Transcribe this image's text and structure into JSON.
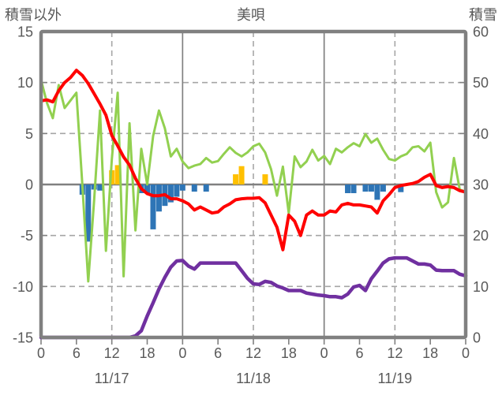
{
  "chart_data": {
    "type": "line",
    "title": "美唄",
    "left_axis": {
      "title": "積雪以外",
      "min": -15,
      "max": 15,
      "ticks": [
        15,
        10,
        5,
        0,
        -5,
        -10,
        -15
      ],
      "tick_labels": [
        "15",
        "10",
        "5",
        "0",
        "-5",
        "-10",
        "-15"
      ]
    },
    "right_axis": {
      "title": "積雪",
      "min": 0,
      "max": 60,
      "ticks": [
        60,
        50,
        40,
        30,
        20,
        10,
        0
      ],
      "tick_labels": [
        "60",
        "50",
        "40",
        "30",
        "20",
        "10",
        "0"
      ]
    },
    "x_axis": {
      "span_hours": 72,
      "tick_every_hours": 6,
      "hour_labels": [
        "0",
        "6",
        "12",
        "18",
        "0",
        "6",
        "12",
        "18",
        "0",
        "6",
        "12",
        "18",
        "0"
      ],
      "date_labels": [
        {
          "label": "11/17",
          "center_hour": 12
        },
        {
          "label": "11/18",
          "center_hour": 36
        },
        {
          "label": "11/19",
          "center_hour": 60
        }
      ],
      "solid_gridlines_at_hours": [
        24,
        48
      ],
      "dashed_gridlines_at_hours": [
        12,
        36,
        60
      ]
    },
    "grid_on": true,
    "legend": "none",
    "colors": {
      "frame": "#808080",
      "grid": "#A6A6A6",
      "text": "#595959",
      "red_line": "#FF0000",
      "green_line": "#92D050",
      "purple_line": "#7030A0",
      "blue_bars": "#2E75B6",
      "yellow_bars": "#FFC000"
    },
    "series": [
      {
        "name": "green-line",
        "type": "line",
        "axis": "right",
        "color": "#92D050",
        "width": 3,
        "start_hour": 0,
        "step_hours": 1,
        "values": [
          50.5,
          46,
          43,
          49.5,
          45,
          46.5,
          48,
          30,
          11,
          27,
          44.5,
          17,
          35,
          48,
          12,
          42,
          21,
          37,
          30,
          39.5,
          44.5,
          41,
          35.5,
          37,
          34.5,
          33.2,
          33.7,
          34,
          35.2,
          34.3,
          34.6,
          36,
          37.3,
          36.2,
          35.5,
          36.3,
          37.5,
          38,
          36.3,
          33,
          27.8,
          33.5,
          24.4,
          35.5,
          33.4,
          34.5,
          36.8,
          34.7,
          35.6,
          34,
          37,
          36.3,
          37.3,
          38.1,
          37.5,
          39.9,
          38.2,
          39,
          36.8,
          35,
          34.7,
          35.5,
          36,
          37.3,
          37.5,
          36.5,
          38.2,
          28.5,
          25.5,
          26.5,
          35.2,
          29,
          28.6
        ]
      },
      {
        "name": "red-line",
        "type": "line",
        "axis": "left",
        "color": "#FF0000",
        "width": 4,
        "start_hour": 0,
        "step_hours": 1,
        "values": [
          8.2,
          8.3,
          8.1,
          9.2,
          10.0,
          10.5,
          11.2,
          10.7,
          9.9,
          8.9,
          7.9,
          6.8,
          4.8,
          3.8,
          2.7,
          1.9,
          0.6,
          -0.4,
          -0.9,
          -1.1,
          -1.1,
          -1.0,
          -1.4,
          -1.4,
          -1.6,
          -1.9,
          -2.5,
          -2.2,
          -2.5,
          -2.8,
          -2.7,
          -2.2,
          -1.9,
          -1.5,
          -1.4,
          -1.35,
          -1.35,
          -1.3,
          -1.8,
          -3.0,
          -4.2,
          -6.4,
          -3.0,
          -3.6,
          -5.0,
          -3.0,
          -2.6,
          -3.0,
          -3.0,
          -2.6,
          -2.7,
          -2.0,
          -1.85,
          -2.0,
          -2.0,
          -2.1,
          -2.2,
          -2.8,
          -1.6,
          -1.0,
          -0.3,
          -0.1,
          0.0,
          0.1,
          0.3,
          0.7,
          1.0,
          -0.1,
          -0.3,
          -0.2,
          -0.3,
          -0.6,
          -0.75
        ]
      },
      {
        "name": "purple-line",
        "type": "line",
        "axis": "right",
        "color": "#7030A0",
        "width": 4.5,
        "start_hour": 0,
        "step_hours": 1,
        "values": [
          0,
          0,
          0,
          0,
          0,
          0,
          0,
          0,
          0,
          0,
          0,
          0,
          0,
          0,
          0,
          0,
          0.3,
          1.3,
          4.2,
          6.8,
          9.5,
          11.8,
          13.8,
          15.0,
          15.1,
          14.0,
          13.4,
          14.6,
          14.6,
          14.6,
          14.6,
          14.6,
          14.6,
          14.6,
          13.1,
          11.6,
          10.5,
          10.4,
          11.0,
          10.8,
          10.1,
          9.7,
          9.2,
          9.2,
          9.2,
          8.7,
          8.5,
          8.3,
          8.2,
          8.0,
          8.0,
          7.8,
          8.5,
          9.9,
          10.2,
          9.2,
          11.5,
          13.0,
          14.6,
          15.4,
          15.6,
          15.6,
          15.6,
          15.0,
          14.4,
          14.4,
          14.2,
          13.2,
          13.1,
          13.1,
          13.1,
          12.4,
          12.1
        ]
      },
      {
        "name": "blue-bars",
        "type": "bar",
        "axis": "left",
        "color": "#2E75B6",
        "bars": [
          {
            "hour": 7,
            "value": -1.0
          },
          {
            "hour": 8,
            "value": -5.6
          },
          {
            "hour": 9,
            "value": -0.5
          },
          {
            "hour": 10,
            "value": -0.6
          },
          {
            "hour": 17,
            "value": -0.85
          },
          {
            "hour": 18,
            "value": -0.85
          },
          {
            "hour": 19,
            "value": -4.4
          },
          {
            "hour": 20,
            "value": -2.65
          },
          {
            "hour": 21,
            "value": -2.1
          },
          {
            "hour": 22,
            "value": -1.75
          },
          {
            "hour": 23,
            "value": -1.2
          },
          {
            "hour": 24,
            "value": -0.6
          },
          {
            "hour": 26,
            "value": -0.7
          },
          {
            "hour": 28,
            "value": -0.7
          },
          {
            "hour": 52,
            "value": -0.85
          },
          {
            "hour": 53,
            "value": -0.85
          },
          {
            "hour": 55,
            "value": -0.7
          },
          {
            "hour": 56,
            "value": -0.7
          },
          {
            "hour": 57,
            "value": -1.5
          },
          {
            "hour": 58,
            "value": -0.7
          },
          {
            "hour": 61,
            "value": -0.75
          }
        ]
      },
      {
        "name": "yellow-bars",
        "type": "bar",
        "axis": "left",
        "color": "#FFC000",
        "bars": [
          {
            "hour": 12,
            "value": 1.4
          },
          {
            "hour": 13,
            "value": 1.9
          },
          {
            "hour": 33,
            "value": 1.0
          },
          {
            "hour": 34,
            "value": 1.8
          },
          {
            "hour": 38,
            "value": 1.0
          }
        ]
      }
    ]
  }
}
